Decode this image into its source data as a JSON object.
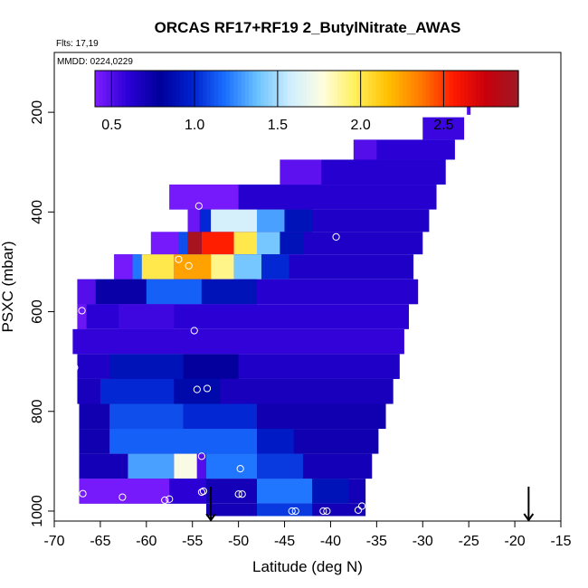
{
  "chart_data": {
    "type": "heatmap",
    "title": "ORCAS RF17+RF19 2_ButylNitrate_AWAS",
    "flights_label": "Flts: 17,19",
    "mmdd_label": "MMDD: 0224,0229",
    "xlabel": "Latitude (deg N)",
    "ylabel": "PSXC (mbar)",
    "xlim": [
      -70,
      -15
    ],
    "ylim": [
      1020,
      80
    ],
    "x_ticks": [
      -70,
      -65,
      -60,
      -55,
      -50,
      -45,
      -40,
      -35,
      -30,
      -25,
      -20,
      -15
    ],
    "x_tick_labels": [
      "-70",
      "-65",
      "-60",
      "-55",
      "-50",
      "-45",
      "-40",
      "-35",
      "-30",
      "-25",
      "-20",
      "-15"
    ],
    "y_ticks": [
      200,
      400,
      600,
      800,
      1000
    ],
    "y_tick_labels": [
      "200",
      "400",
      "600",
      "800",
      "1000"
    ],
    "colorbar": {
      "range": [
        0.4,
        2.95
      ],
      "ticks": [
        0.5,
        1.0,
        1.5,
        2.0,
        2.5
      ],
      "tick_labels": [
        "0.5",
        "1.0",
        "1.5",
        "2.0",
        "2.5"
      ],
      "colors": [
        "#7f1dff",
        "#2b00d6",
        "#00009a",
        "#0022d0",
        "#1a6fff",
        "#6cc3ff",
        "#cfeeff",
        "#fffde0",
        "#fff05a",
        "#ffc000",
        "#ff7a00",
        "#ff1a00",
        "#c8000c",
        "#9c1a24"
      ]
    },
    "bands": [
      {
        "p_top": 180,
        "p_bot": 205,
        "x_start": -25.2,
        "x_end": -24.8,
        "value_default": 0.5,
        "segments": []
      },
      {
        "p_top": 210,
        "p_bot": 255,
        "x_start": -30,
        "x_end": -25.5,
        "value_default": 0.56,
        "segments": []
      },
      {
        "p_top": 255,
        "p_bot": 295,
        "x_start": -37.5,
        "x_end": -26.5,
        "value_default": 0.6,
        "segments": [
          {
            "x0": -37.5,
            "x1": -35,
            "v": 0.5
          }
        ]
      },
      {
        "p_top": 295,
        "p_bot": 345,
        "x_start": -45.5,
        "x_end": -27.5,
        "value_default": 0.62,
        "segments": [
          {
            "x0": -45.5,
            "x1": -41,
            "v": 0.48
          }
        ]
      },
      {
        "p_top": 345,
        "p_bot": 395,
        "x_start": -57.5,
        "x_end": -28.5,
        "value_default": 0.62,
        "segments": [
          {
            "x0": -57.5,
            "x1": -50,
            "v": 0.42
          }
        ]
      },
      {
        "p_top": 395,
        "p_bot": 440,
        "x_start": -55.5,
        "x_end": -29.3,
        "value_default": 0.65,
        "segments": [
          {
            "x0": -55.5,
            "x1": -54.2,
            "v": 0.45
          },
          {
            "x0": -54.2,
            "x1": -53,
            "v": 1.0
          },
          {
            "x0": -53,
            "x1": -48,
            "v": 1.6
          },
          {
            "x0": -48,
            "x1": -45,
            "v": 1.3
          },
          {
            "x0": -45,
            "x1": -42,
            "v": 0.9
          }
        ]
      },
      {
        "p_top": 440,
        "p_bot": 485,
        "x_start": -59.5,
        "x_end": -30,
        "value_default": 0.65,
        "segments": [
          {
            "x0": -59.5,
            "x1": -56.5,
            "v": 0.42
          },
          {
            "x0": -56.5,
            "x1": -55.5,
            "v": 1.1
          },
          {
            "x0": -55.5,
            "x1": -54,
            "v": 2.9
          },
          {
            "x0": -54,
            "x1": -50.5,
            "v": 2.55
          },
          {
            "x0": -50.5,
            "x1": -48,
            "v": 2.0
          },
          {
            "x0": -48,
            "x1": -45.5,
            "v": 1.4
          },
          {
            "x0": -45.5,
            "x1": -43,
            "v": 0.9
          }
        ]
      },
      {
        "p_top": 485,
        "p_bot": 535,
        "x_start": -63.5,
        "x_end": -31,
        "value_default": 0.65,
        "segments": [
          {
            "x0": -63.5,
            "x1": -61.5,
            "v": 0.42
          },
          {
            "x0": -61.5,
            "x1": -60.5,
            "v": 1.2
          },
          {
            "x0": -60.5,
            "x1": -57,
            "v": 2.0
          },
          {
            "x0": -57,
            "x1": -53,
            "v": 2.25
          },
          {
            "x0": -53,
            "x1": -50.5,
            "v": 1.9
          },
          {
            "x0": -50.5,
            "x1": -47.5,
            "v": 1.4
          },
          {
            "x0": -47.5,
            "x1": -44.5,
            "v": 1.0
          }
        ]
      },
      {
        "p_top": 535,
        "p_bot": 585,
        "x_start": -67.5,
        "x_end": -30.5,
        "value_default": 0.62,
        "segments": [
          {
            "x0": -67.5,
            "x1": -65.5,
            "v": 0.5
          },
          {
            "x0": -65.5,
            "x1": -60,
            "v": 0.75
          },
          {
            "x0": -60,
            "x1": -54,
            "v": 1.15
          },
          {
            "x0": -54,
            "x1": -48,
            "v": 0.9
          }
        ]
      },
      {
        "p_top": 585,
        "p_bot": 635,
        "x_start": -67.5,
        "x_end": -31.5,
        "value_default": 0.6,
        "segments": [
          {
            "x0": -67.5,
            "x1": -66.5,
            "v": 0.45
          },
          {
            "x0": -63,
            "x1": -57,
            "v": 0.55
          }
        ]
      },
      {
        "p_top": 635,
        "p_bot": 685,
        "x_start": -68,
        "x_end": -32,
        "value_default": 0.58,
        "segments": []
      },
      {
        "p_top": 685,
        "p_bot": 735,
        "x_start": -67.5,
        "x_end": -32.5,
        "value_default": 0.65,
        "segments": [
          {
            "x0": -64,
            "x1": -56,
            "v": 0.9
          },
          {
            "x0": -56,
            "x1": -50,
            "v": 0.78
          }
        ]
      },
      {
        "p_top": 735,
        "p_bot": 785,
        "x_start": -67.5,
        "x_end": -33.2,
        "value_default": 0.68,
        "segments": [
          {
            "x0": -65,
            "x1": -57,
            "v": 1.0
          },
          {
            "x0": -57,
            "x1": -52,
            "v": 0.85
          }
        ]
      },
      {
        "p_top": 785,
        "p_bot": 835,
        "x_start": -67.3,
        "x_end": -34,
        "value_default": 0.72,
        "segments": [
          {
            "x0": -64,
            "x1": -56,
            "v": 1.1
          },
          {
            "x0": -56,
            "x1": -48,
            "v": 1.0
          }
        ]
      },
      {
        "p_top": 835,
        "p_bot": 885,
        "x_start": -67.3,
        "x_end": -34.8,
        "value_default": 0.72,
        "segments": [
          {
            "x0": -64,
            "x1": -48,
            "v": 1.15
          },
          {
            "x0": -48,
            "x1": -44,
            "v": 0.95
          }
        ]
      },
      {
        "p_top": 885,
        "p_bot": 935,
        "x_start": -67.3,
        "x_end": -35.5,
        "value_default": 0.7,
        "segments": [
          {
            "x0": -62,
            "x1": -57,
            "v": 1.3
          },
          {
            "x0": -57,
            "x1": -54.5,
            "v": 1.75
          },
          {
            "x0": -54.5,
            "x1": -53.5,
            "v": 0.5
          },
          {
            "x0": -53.5,
            "x1": -48,
            "v": 1.2
          },
          {
            "x0": -48,
            "x1": -43,
            "v": 1.05
          }
        ]
      },
      {
        "p_top": 935,
        "p_bot": 985,
        "x_start": -67.3,
        "x_end": -36.2,
        "value_default": 0.7,
        "segments": [
          {
            "x0": -67.3,
            "x1": -57.5,
            "v": 0.42
          },
          {
            "x0": -57.5,
            "x1": -53.5,
            "v": 0.6
          },
          {
            "x0": -48,
            "x1": -42,
            "v": 1.2
          },
          {
            "x0": -42,
            "x1": -38,
            "v": 0.9
          }
        ]
      },
      {
        "p_top": 985,
        "p_bot": 1010,
        "x_start": -53.5,
        "x_end": -36.2,
        "value_default": 0.7,
        "segments": [
          {
            "x0": -48,
            "x1": -42,
            "v": 1.05
          }
        ]
      }
    ],
    "sample_points": [
      {
        "lat": -54.3,
        "p": 388
      },
      {
        "lat": -39.4,
        "p": 450
      },
      {
        "lat": -56.5,
        "p": 495
      },
      {
        "lat": -55.4,
        "p": 508
      },
      {
        "lat": -67.0,
        "p": 598
      },
      {
        "lat": -54.8,
        "p": 638
      },
      {
        "lat": -67.8,
        "p": 712
      },
      {
        "lat": -54.5,
        "p": 756
      },
      {
        "lat": -53.4,
        "p": 754
      },
      {
        "lat": -54.0,
        "p": 890
      },
      {
        "lat": -49.8,
        "p": 915
      },
      {
        "lat": -54.0,
        "p": 962
      },
      {
        "lat": -53.8,
        "p": 960
      },
      {
        "lat": -50.0,
        "p": 966
      },
      {
        "lat": -49.6,
        "p": 966
      },
      {
        "lat": -66.9,
        "p": 965
      },
      {
        "lat": -62.6,
        "p": 972
      },
      {
        "lat": -58.0,
        "p": 978
      },
      {
        "lat": -57.5,
        "p": 976
      },
      {
        "lat": -44.2,
        "p": 1000
      },
      {
        "lat": -43.8,
        "p": 1000
      },
      {
        "lat": -40.8,
        "p": 1000
      },
      {
        "lat": -40.4,
        "p": 1000
      },
      {
        "lat": -37.0,
        "p": 998
      },
      {
        "lat": -36.6,
        "p": 990
      }
    ],
    "markers": [
      {
        "lat": -53.0,
        "p": 960
      },
      {
        "lat": -18.5,
        "p": 960
      }
    ]
  }
}
